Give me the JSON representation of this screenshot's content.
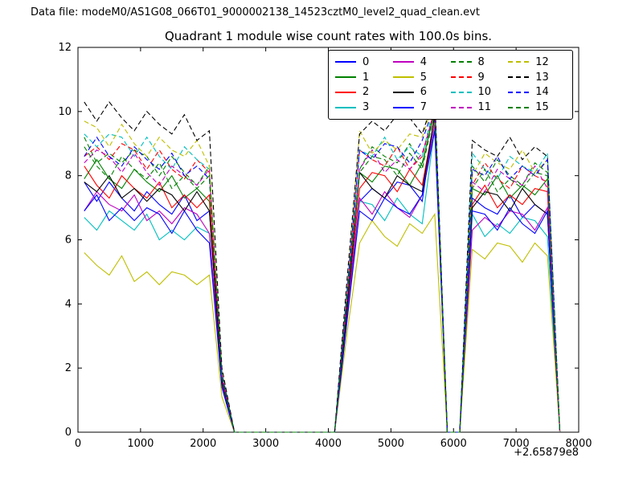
{
  "header": {
    "data_file_label": "Data file: modeM0/AS1G08_066T01_9000002138_14523cztM0_level2_quad_clean.evt"
  },
  "chart_data": {
    "type": "line",
    "title": "Quadrant 1 module wise count rates with 100.0s bins.",
    "xlabel": "",
    "ylabel": "",
    "x_offset_label": "+2.65879e8",
    "xlim": [
      0,
      8000
    ],
    "ylim": [
      0,
      12
    ],
    "xticks": [
      0,
      1000,
      2000,
      3000,
      4000,
      5000,
      6000,
      7000,
      8000
    ],
    "yticks": [
      0,
      2,
      4,
      6,
      8,
      10,
      12
    ],
    "grid": false,
    "legend_position": "upper right inside",
    "x": [
      100,
      300,
      500,
      700,
      900,
      1100,
      1300,
      1500,
      1700,
      1900,
      2100,
      2300,
      2500,
      2700,
      2900,
      3100,
      3300,
      3500,
      3700,
      3900,
      4100,
      4300,
      4500,
      4700,
      4900,
      5100,
      5300,
      5500,
      5700,
      5900,
      6100,
      6300,
      6500,
      6700,
      6900,
      7100,
      7300,
      7500,
      7700
    ],
    "series": [
      {
        "name": "0",
        "color": "#0000ff",
        "dash": "solid",
        "values": [
          7.8,
          7.2,
          7.8,
          7.3,
          6.9,
          7.5,
          7.1,
          6.8,
          7.4,
          6.6,
          6.9,
          1.5,
          0,
          0,
          0,
          0,
          0,
          0,
          0,
          0,
          0,
          3.8,
          7.2,
          7.6,
          7.3,
          7.8,
          7.7,
          7.2,
          9.9,
          0,
          0,
          7.3,
          7.0,
          6.8,
          7.4,
          6.7,
          7.1,
          6.8,
          0
        ]
      },
      {
        "name": "1",
        "color": "#008000",
        "dash": "solid",
        "values": [
          7.9,
          8.5,
          7.9,
          7.6,
          8.2,
          7.8,
          7.5,
          8.0,
          7.3,
          7.6,
          7.2,
          1.6,
          0,
          0,
          0,
          0,
          0,
          0,
          0,
          0,
          0,
          4.0,
          8.1,
          7.8,
          8.3,
          8.2,
          7.7,
          8.4,
          10.0,
          0,
          0,
          7.6,
          7.4,
          8.0,
          7.3,
          7.7,
          7.4,
          7.9,
          0
        ]
      },
      {
        "name": "2",
        "color": "#ff0000",
        "dash": "solid",
        "values": [
          8.3,
          7.7,
          7.3,
          8.0,
          7.6,
          7.3,
          7.8,
          7.0,
          7.4,
          7.0,
          7.4,
          1.6,
          0,
          0,
          0,
          0,
          0,
          0,
          0,
          0,
          0,
          3.9,
          7.6,
          8.1,
          8.0,
          7.5,
          8.2,
          7.7,
          9.8,
          0,
          0,
          7.1,
          7.7,
          7.0,
          7.4,
          7.1,
          7.6,
          7.5,
          0
        ]
      },
      {
        "name": "3",
        "color": "#00bfbf",
        "dash": "solid",
        "values": [
          6.7,
          6.3,
          6.9,
          6.6,
          6.3,
          6.8,
          6.0,
          6.3,
          6.0,
          6.4,
          6.2,
          1.4,
          0,
          0,
          0,
          0,
          0,
          0,
          0,
          0,
          0,
          3.5,
          7.2,
          7.1,
          6.6,
          7.3,
          6.8,
          6.5,
          9.5,
          0,
          0,
          6.8,
          6.1,
          6.5,
          6.2,
          6.7,
          6.6,
          6.1,
          0
        ]
      },
      {
        "name": "4",
        "color": "#bf00bf",
        "dash": "solid",
        "values": [
          6.9,
          7.5,
          7.1,
          6.9,
          7.4,
          6.6,
          6.9,
          6.5,
          7.0,
          6.8,
          6.2,
          1.5,
          0,
          0,
          0,
          0,
          0,
          0,
          0,
          0,
          0,
          3.6,
          7.3,
          6.8,
          7.5,
          7.0,
          6.7,
          7.4,
          9.6,
          0,
          0,
          6.3,
          6.7,
          6.4,
          6.9,
          6.8,
          6.3,
          7.0,
          0
        ]
      },
      {
        "name": "5",
        "color": "#bfbf00",
        "dash": "solid",
        "values": [
          5.6,
          5.2,
          4.9,
          5.5,
          4.7,
          5.0,
          4.6,
          5.0,
          4.9,
          4.6,
          4.9,
          1.1,
          0,
          0,
          0,
          0,
          0,
          0,
          0,
          0,
          0,
          3.1,
          5.9,
          6.6,
          6.1,
          5.8,
          6.5,
          6.2,
          6.8,
          0,
          0,
          5.7,
          5.4,
          5.9,
          5.8,
          5.3,
          5.9,
          5.5,
          0
        ]
      },
      {
        "name": "6",
        "color": "#000000",
        "dash": "solid",
        "values": [
          7.8,
          7.5,
          8.0,
          7.3,
          7.6,
          7.2,
          7.6,
          7.4,
          6.9,
          7.5,
          6.9,
          1.6,
          0,
          0,
          0,
          0,
          0,
          0,
          0,
          0,
          0,
          3.9,
          8.1,
          7.6,
          7.3,
          8.0,
          7.7,
          7.5,
          9.9,
          0,
          0,
          7.0,
          7.5,
          7.4,
          6.9,
          7.6,
          7.1,
          6.8,
          0
        ]
      },
      {
        "name": "7",
        "color": "#0000ff",
        "dash": "solid",
        "values": [
          6.9,
          7.4,
          6.6,
          7.0,
          6.6,
          7.0,
          6.8,
          6.2,
          6.9,
          6.3,
          5.9,
          1.4,
          0,
          0,
          0,
          0,
          0,
          0,
          0,
          0,
          0,
          3.5,
          6.9,
          6.6,
          7.3,
          7.0,
          6.8,
          7.4,
          9.4,
          0,
          0,
          6.9,
          6.8,
          6.3,
          7.0,
          6.5,
          6.2,
          6.9,
          0
        ]
      },
      {
        "name": "8",
        "color": "#008000",
        "dash": "dashed",
        "values": [
          9.2,
          8.4,
          8.7,
          8.4,
          8.8,
          8.6,
          8.0,
          8.6,
          8.1,
          7.7,
          8.3,
          1.8,
          0,
          0,
          0,
          0,
          0,
          0,
          0,
          0,
          0,
          4.3,
          8.2,
          8.9,
          8.6,
          8.4,
          9.0,
          8.3,
          10.2,
          0,
          0,
          8.3,
          7.8,
          8.5,
          8.0,
          7.7,
          8.4,
          8.1,
          0
        ]
      },
      {
        "name": "9",
        "color": "#ff0000",
        "dash": "dashed",
        "values": [
          8.6,
          8.9,
          8.5,
          9.0,
          8.8,
          8.2,
          8.8,
          8.2,
          7.9,
          8.5,
          8.1,
          1.8,
          0,
          0,
          0,
          0,
          0,
          0,
          0,
          0,
          0,
          4.3,
          8.8,
          8.5,
          8.3,
          8.9,
          8.2,
          8.6,
          10.1,
          0,
          0,
          7.7,
          8.4,
          7.9,
          7.6,
          8.3,
          8.0,
          7.8,
          0
        ]
      },
      {
        "name": "10",
        "color": "#00bfbf",
        "dash": "dashed",
        "values": [
          9.3,
          8.9,
          9.3,
          9.2,
          8.6,
          9.2,
          8.6,
          8.2,
          8.9,
          8.5,
          8.2,
          1.8,
          0,
          0,
          0,
          0,
          0,
          0,
          0,
          0,
          0,
          4.4,
          8.8,
          8.6,
          9.2,
          8.5,
          8.9,
          8.6,
          10.3,
          0,
          0,
          8.7,
          8.2,
          7.9,
          8.6,
          8.3,
          8.1,
          8.7,
          0
        ]
      },
      {
        "name": "11",
        "color": "#bf00bf",
        "dash": "dashed",
        "values": [
          8.4,
          8.8,
          8.6,
          8.1,
          8.7,
          8.1,
          7.7,
          8.3,
          8.0,
          7.7,
          8.2,
          1.7,
          0,
          0,
          0,
          0,
          0,
          0,
          0,
          0,
          0,
          4.2,
          8.2,
          8.8,
          8.1,
          8.5,
          8.2,
          8.7,
          10.0,
          0,
          0,
          7.8,
          7.5,
          8.2,
          7.9,
          7.7,
          8.3,
          7.6,
          0
        ]
      },
      {
        "name": "12",
        "color": "#bfbf00",
        "dash": "dashed",
        "values": [
          9.7,
          9.5,
          8.9,
          9.6,
          9.0,
          8.6,
          9.2,
          8.8,
          8.6,
          9.1,
          8.3,
          1.9,
          0,
          0,
          0,
          0,
          0,
          0,
          0,
          0,
          0,
          4.5,
          9.4,
          8.7,
          9.1,
          8.8,
          9.3,
          9.2,
          10.4,
          0,
          0,
          8.0,
          8.7,
          8.4,
          8.2,
          8.8,
          8.1,
          8.5,
          0
        ]
      },
      {
        "name": "13",
        "color": "#000000",
        "dash": "dashed",
        "values": [
          10.3,
          9.7,
          10.3,
          9.8,
          9.4,
          10.0,
          9.6,
          9.3,
          9.9,
          9.1,
          9.4,
          2.0,
          0,
          0,
          0,
          0,
          0,
          0,
          0,
          0,
          0,
          4.8,
          9.3,
          9.7,
          9.4,
          9.9,
          9.8,
          9.3,
          10.5,
          0,
          0,
          9.1,
          8.8,
          8.6,
          9.2,
          8.5,
          8.9,
          8.6,
          0
        ]
      },
      {
        "name": "14",
        "color": "#0000ff",
        "dash": "dashed",
        "values": [
          8.6,
          9.2,
          8.6,
          8.3,
          8.9,
          8.5,
          8.2,
          8.7,
          8.0,
          8.3,
          7.9,
          1.8,
          0,
          0,
          0,
          0,
          0,
          0,
          0,
          0,
          0,
          4.4,
          8.8,
          8.5,
          9.0,
          8.9,
          8.4,
          9.1,
          10.2,
          0,
          0,
          8.2,
          8.0,
          8.6,
          7.9,
          8.3,
          8.0,
          8.5,
          0
        ]
      },
      {
        "name": "15",
        "color": "#008000",
        "dash": "dashed",
        "values": [
          8.9,
          8.3,
          7.9,
          8.6,
          8.2,
          7.9,
          8.4,
          7.6,
          8.0,
          7.6,
          8.0,
          1.7,
          0,
          0,
          0,
          0,
          0,
          0,
          0,
          0,
          0,
          4.2,
          8.1,
          8.6,
          8.5,
          8.0,
          8.7,
          8.2,
          10.0,
          0,
          0,
          7.6,
          8.2,
          7.5,
          7.9,
          7.6,
          8.1,
          8.0,
          0
        ]
      }
    ]
  }
}
